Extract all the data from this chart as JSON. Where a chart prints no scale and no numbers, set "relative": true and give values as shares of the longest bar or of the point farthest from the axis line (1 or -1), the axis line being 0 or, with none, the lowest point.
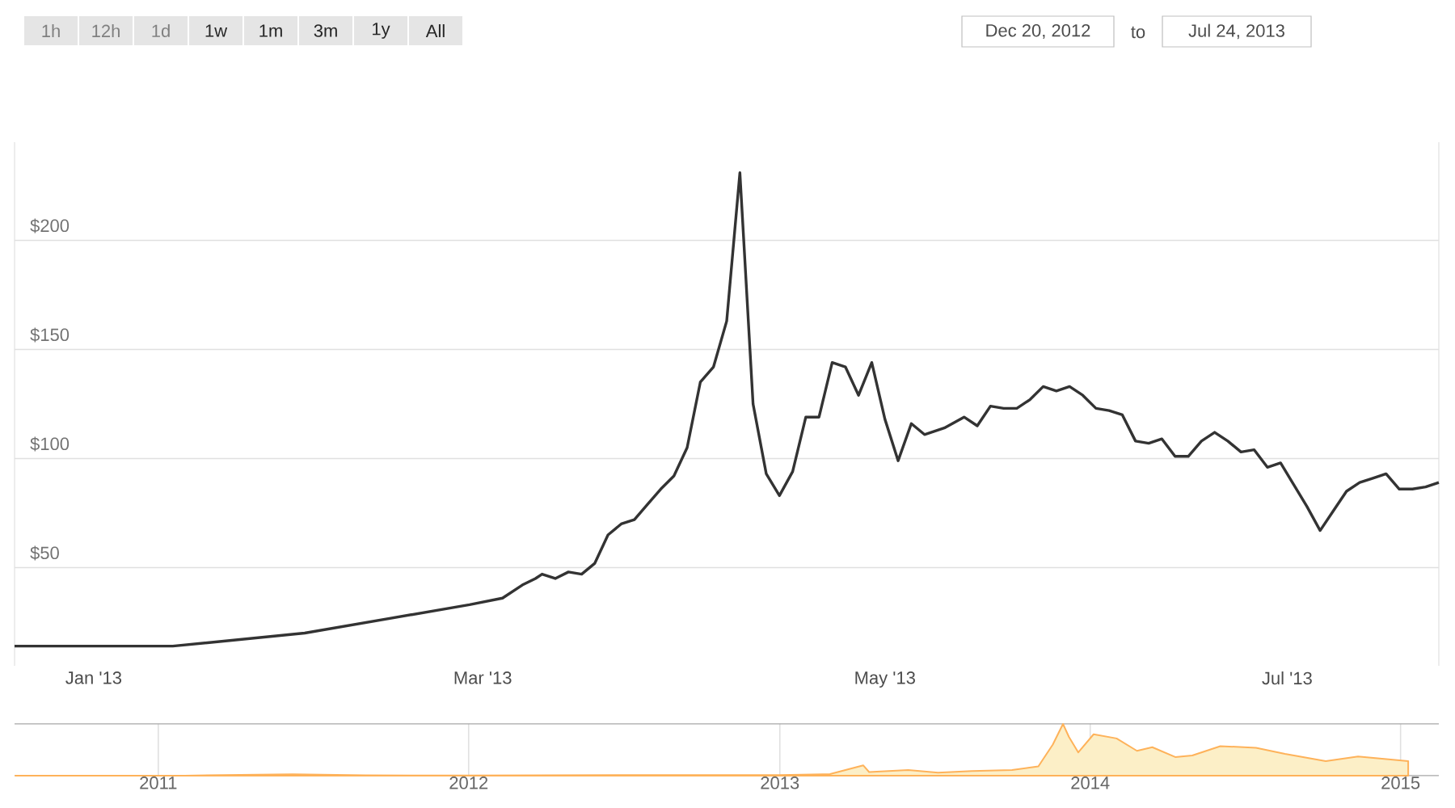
{
  "chart_data": [
    {
      "type": "line",
      "color": "#333333",
      "x": [
        "2012-12-20",
        "2013-01-13",
        "2013-02-02",
        "2013-02-27",
        "2013-03-04",
        "2013-03-07",
        "2013-03-09",
        "2013-03-10",
        "2013-03-12",
        "2013-03-14",
        "2013-03-16",
        "2013-03-18",
        "2013-03-20",
        "2013-03-22",
        "2013-03-24",
        "2013-03-26",
        "2013-03-28",
        "2013-03-30",
        "2013-04-01",
        "2013-04-03",
        "2013-04-05",
        "2013-04-07",
        "2013-04-09",
        "2013-04-11",
        "2013-04-13",
        "2013-04-15",
        "2013-04-17",
        "2013-04-19",
        "2013-04-21",
        "2013-04-23",
        "2013-04-25",
        "2013-04-27",
        "2013-04-29",
        "2013-05-01",
        "2013-05-03",
        "2013-05-05",
        "2013-05-07",
        "2013-05-10",
        "2013-05-13",
        "2013-05-15",
        "2013-05-17",
        "2013-05-19",
        "2013-05-21",
        "2013-05-23",
        "2013-05-25",
        "2013-05-27",
        "2013-05-29",
        "2013-05-31",
        "2013-06-02",
        "2013-06-04",
        "2013-06-06",
        "2013-06-08",
        "2013-06-10",
        "2013-06-12",
        "2013-06-14",
        "2013-06-16",
        "2013-06-18",
        "2013-06-20",
        "2013-06-22",
        "2013-06-24",
        "2013-06-26",
        "2013-06-28",
        "2013-06-30",
        "2013-07-02",
        "2013-07-04",
        "2013-07-06",
        "2013-07-08",
        "2013-07-10",
        "2013-07-12",
        "2013-07-14",
        "2013-07-16",
        "2013-07-18",
        "2013-07-20",
        "2013-07-22",
        "2013-07-24"
      ],
      "values": [
        14,
        14,
        20,
        33,
        36,
        42,
        45,
        47,
        45,
        48,
        47,
        52,
        65,
        70,
        72,
        79,
        86,
        92,
        105,
        135,
        142,
        163,
        231,
        125,
        93,
        83,
        94,
        119,
        119,
        144,
        142,
        129,
        144,
        118,
        99,
        116,
        111,
        114,
        119,
        115,
        124,
        123,
        123,
        127,
        133,
        131,
        133,
        129,
        123,
        122,
        120,
        108,
        107,
        109,
        101,
        101,
        108,
        112,
        108,
        103,
        104,
        96,
        98,
        88,
        78,
        67,
        76,
        85,
        89,
        91,
        93,
        86,
        86,
        87,
        89
      ],
      "xlim": [
        "2012-12-20",
        "2013-07-24"
      ],
      "xticks": [
        {
          "value": "2013-01-01",
          "label": "Jan '13"
        },
        {
          "value": "2013-03-01",
          "label": "Mar '13"
        },
        {
          "value": "2013-05-01",
          "label": "May '13"
        },
        {
          "value": "2013-07-01",
          "label": "Jul '13"
        }
      ],
      "ylim": [
        5,
        245
      ],
      "yticks": [
        {
          "value": 50,
          "label": "$50"
        },
        {
          "value": 100,
          "label": "$100"
        },
        {
          "value": 150,
          "label": "$150"
        },
        {
          "value": 200,
          "label": "$200"
        }
      ],
      "grid": "y",
      "annotations": [
        "1h",
        "12h",
        "1d",
        "1w",
        "1m",
        "3m",
        "1y",
        "All",
        "Dec 20, 2012",
        "to",
        "Jul 24, 2013"
      ]
    },
    {
      "type": "area",
      "relative": true,
      "color": "#fcefc7",
      "x": [
        "2010-07-17",
        "2011-02-01",
        "2011-06-08",
        "2011-09-01",
        "2012-01-01",
        "2012-08-15",
        "2013-01-01",
        "2013-03-01",
        "2013-04-09",
        "2013-04-16",
        "2013-06-01",
        "2013-07-06",
        "2013-08-15",
        "2013-10-01",
        "2013-11-01",
        "2013-11-18",
        "2013-11-30",
        "2013-12-07",
        "2013-12-18",
        "2014-01-05",
        "2014-02-01",
        "2014-02-25",
        "2014-03-15",
        "2014-04-11",
        "2014-05-01",
        "2014-06-03",
        "2014-07-15",
        "2014-08-18",
        "2014-10-05",
        "2014-11-12",
        "2015-01-10"
      ],
      "values": [
        0,
        0.001,
        0.025,
        0.006,
        0.004,
        0.012,
        0.012,
        0.03,
        0.2,
        0.07,
        0.11,
        0.06,
        0.09,
        0.11,
        0.18,
        0.6,
        1,
        0.75,
        0.45,
        0.8,
        0.72,
        0.48,
        0.55,
        0.36,
        0.39,
        0.57,
        0.54,
        0.42,
        0.28,
        0.37,
        0.28
      ],
      "xlim": [
        "2010-07-16",
        "2015-02-15"
      ],
      "xticks": [
        {
          "value": "2011-01-01",
          "label": "2011"
        },
        {
          "value": "2012-01-01",
          "label": "2012"
        },
        {
          "value": "2013-01-01",
          "label": "2013"
        },
        {
          "value": "2014-01-01",
          "label": "2014"
        },
        {
          "value": "2015-01-01",
          "label": "2015"
        }
      ],
      "grid": "x"
    }
  ]
}
